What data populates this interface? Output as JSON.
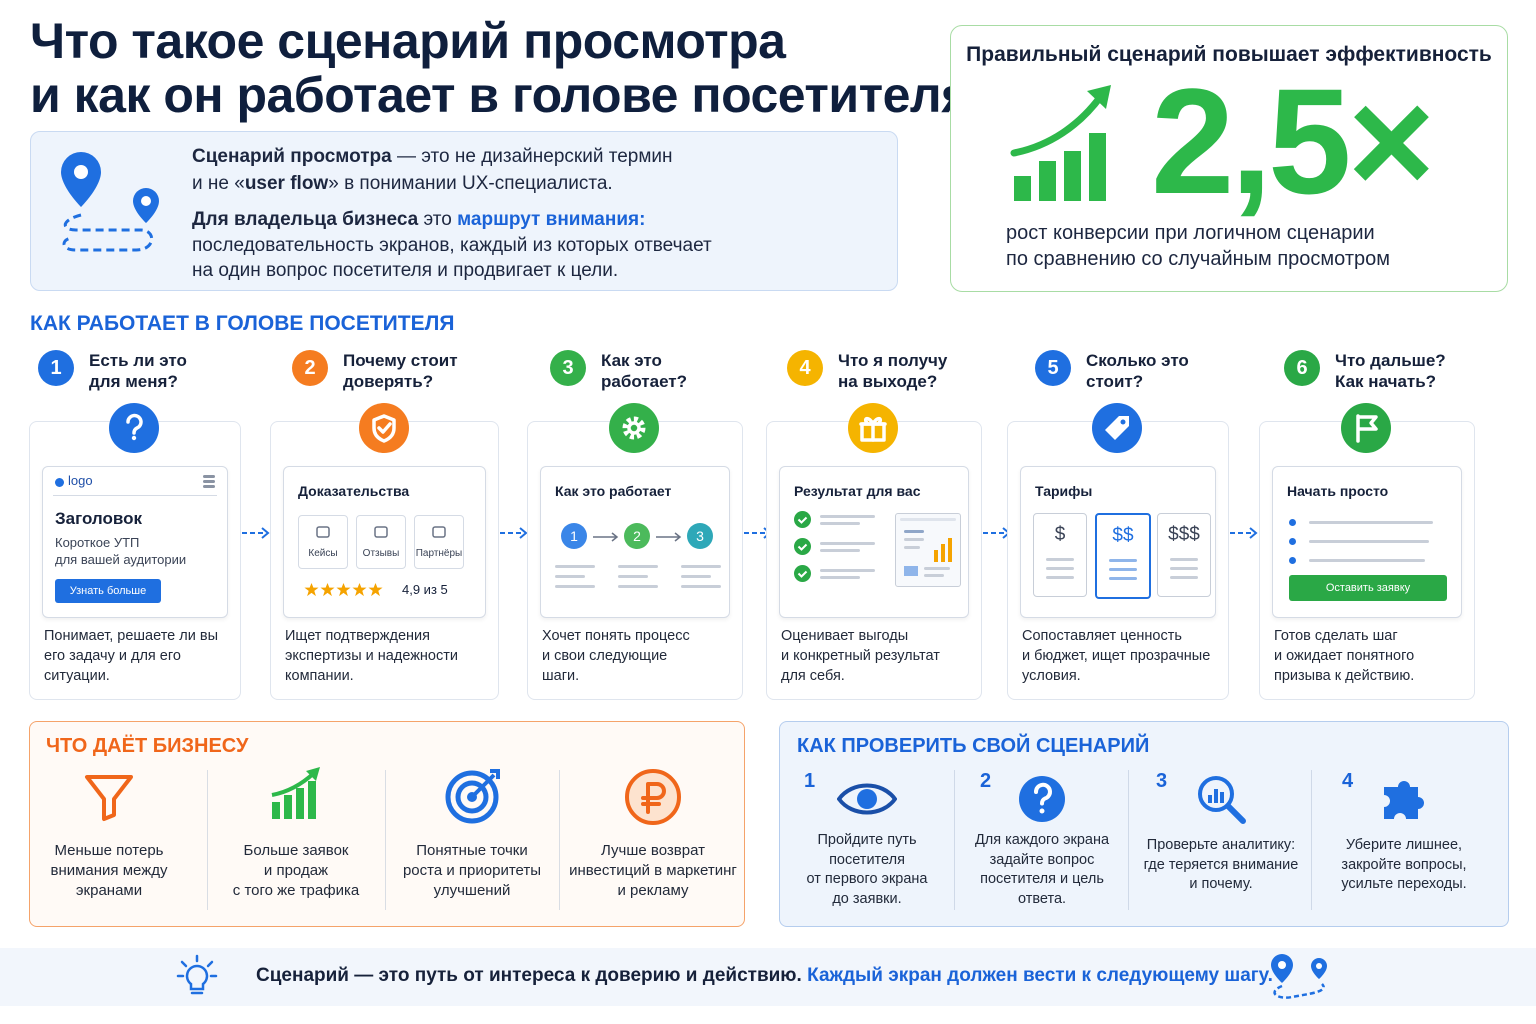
{
  "header": {
    "title_line1": "Что такое сценарий просмотра",
    "title_line2": "и как он работает в голове посетителя"
  },
  "intro": {
    "line1_bold": "Сценарий просмотра",
    "line1_rest": " — это не дизайнерский термин",
    "line2_pre": "и не «",
    "line2_bold": "user flow",
    "line2_rest": "» в понимании UX-специалиста.",
    "line3_bold": "Для владельца бизнеса",
    "line3_mid": " это ",
    "line3_link": "маршрут внимания:",
    "line4": "последовательность экранов, каждый из которых отвечает",
    "line5": "на один вопрос посетителя и продвигает к цели."
  },
  "stat": {
    "title": "Правильный сценарий повышает эффективность",
    "value": "2,5×",
    "caption_line1": "рост конверсии при логичном сценарии",
    "caption_line2": "по сравнению со случайным просмотром"
  },
  "steps": {
    "heading": "КАК РАБОТАЕТ В ГОЛОВЕ ПОСЕТИТЕЛЯ",
    "items": [
      {
        "number": "1",
        "question": [
          "Есть ли это",
          "для меня?"
        ],
        "card": {
          "logo": "logo",
          "title": "Заголовок",
          "text_line1": "Короткое УТП",
          "text_line2": "для вашей аудитории",
          "button": "Узнать больше"
        },
        "description": [
          "Понимает, решаете ли вы",
          "его задачу и для его",
          "ситуации."
        ]
      },
      {
        "number": "2",
        "question": [
          "Почему стоит",
          "доверять?"
        ],
        "card": {
          "title": "Доказательства",
          "tiles": [
            "Кейсы",
            "Отзывы",
            "Партнёры"
          ],
          "rating": "4,9 из 5"
        },
        "description": [
          "Ищет подтверждения",
          "экспертизы и надежности",
          "компании."
        ]
      },
      {
        "number": "3",
        "question": [
          "Как это",
          "работает?"
        ],
        "card": {
          "title": "Как это работает",
          "steps": [
            "1",
            "2",
            "3"
          ]
        },
        "description": [
          "Хочет понять процесс",
          "и свои следующие",
          "шаги."
        ]
      },
      {
        "number": "4",
        "question": [
          "Что я получу",
          "на выходе?"
        ],
        "card": {
          "title": "Результат для вас"
        },
        "description": [
          "Оценивает выгоды",
          "и конкретный результат",
          "для себя."
        ]
      },
      {
        "number": "5",
        "question": [
          "Сколько это",
          "стоит?"
        ],
        "card": {
          "title": "Тарифы",
          "plans": [
            "$",
            "$$",
            "$$$"
          ]
        },
        "description": [
          "Сопоставляет ценность",
          "и бюджет, ищет прозрачные",
          "условия."
        ]
      },
      {
        "number": "6",
        "question": [
          "Что дальше?",
          "Как начать?"
        ],
        "card": {
          "title": "Начать просто",
          "button": "Оставить заявку"
        },
        "description": [
          "Готов сделать шаг",
          "и ожидает понятного",
          "призыва к действию."
        ]
      }
    ]
  },
  "business": {
    "heading": "ЧТО ДАЁТ БИЗНЕСУ",
    "items": [
      {
        "text": [
          "Меньше потерь",
          "внимания между",
          "экранами"
        ]
      },
      {
        "text": [
          "Больше заявок",
          "и продаж",
          "с того же трафика"
        ]
      },
      {
        "text": [
          "Понятные точки",
          "роста и приоритеты",
          "улучшений"
        ]
      },
      {
        "text": [
          "Лучше возврат",
          "инвестиций в маркетинг",
          "и рекламу"
        ]
      }
    ]
  },
  "check": {
    "heading": "КАК ПРОВЕРИТЬ СВОЙ СЦЕНАРИЙ",
    "items": [
      {
        "number": "1",
        "text": [
          "Пройдите путь",
          "посетителя",
          "от первого экрана",
          "до заявки."
        ]
      },
      {
        "number": "2",
        "text": [
          "Для каждого экрана",
          "задайте вопрос",
          "посетителя и цель",
          "ответа."
        ]
      },
      {
        "number": "3",
        "text": [
          "Проверьте аналитику:",
          "где теряется внимание",
          "и почему."
        ]
      },
      {
        "number": "4",
        "text": [
          "Уберите лишнее,",
          "закройте вопросы,",
          "усильте переходы."
        ]
      }
    ]
  },
  "footer": {
    "text": "Сценарий — это путь от интереса к доверию и действию.",
    "highlight": "Каждый экран должен вести к следующему шагу."
  }
}
